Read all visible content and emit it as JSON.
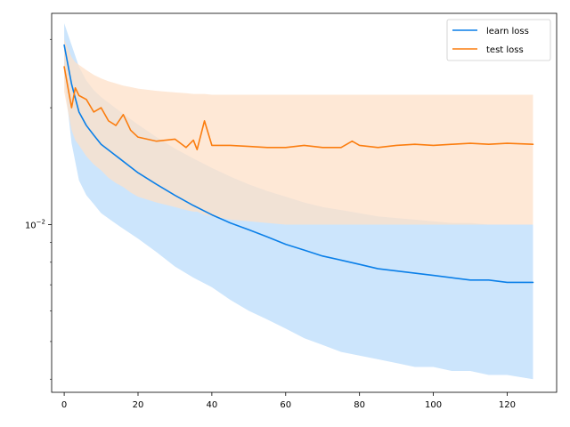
{
  "chart_data": {
    "type": "line",
    "title": "",
    "xlabel": "",
    "ylabel": "",
    "xlim": [
      -3.4,
      133.4
    ],
    "ylim": [
      0.0037,
      0.035
    ],
    "yscale": "log",
    "x_ticks": [
      0,
      20,
      40,
      60,
      80,
      100,
      120
    ],
    "x_tick_labels": [
      "0",
      "20",
      "40",
      "60",
      "80",
      "100",
      "120"
    ],
    "y_major_ticks": [
      0.01
    ],
    "y_major_tick_label_base": "10",
    "y_major_tick_label_exp": "−2",
    "y_minor_ticks": [
      0.004,
      0.005,
      0.006,
      0.007,
      0.008,
      0.009,
      0.02,
      0.03
    ],
    "grid": false,
    "legend_position": "top-right",
    "series": [
      {
        "name": "learn loss",
        "color": "#0a7fe8",
        "band_color": "#cce5fc",
        "x": [
          0,
          2,
          4,
          6,
          8,
          10,
          15,
          20,
          25,
          30,
          35,
          40,
          45,
          50,
          55,
          60,
          65,
          70,
          75,
          80,
          85,
          90,
          95,
          100,
          105,
          110,
          115,
          120,
          127
        ],
        "mean": [
          0.029,
          0.023,
          0.0195,
          0.018,
          0.017,
          0.0161,
          0.0148,
          0.0136,
          0.0127,
          0.0119,
          0.0112,
          0.0106,
          0.0101,
          0.0097,
          0.0093,
          0.0089,
          0.0086,
          0.0083,
          0.0081,
          0.0079,
          0.0077,
          0.0076,
          0.0075,
          0.0074,
          0.0073,
          0.0072,
          0.0072,
          0.0071,
          0.0071
        ],
        "lower": [
          0.024,
          0.0162,
          0.013,
          0.0119,
          0.0113,
          0.0107,
          0.0099,
          0.0092,
          0.0085,
          0.0078,
          0.0073,
          0.0069,
          0.0064,
          0.006,
          0.0057,
          0.0054,
          0.0051,
          0.0049,
          0.0047,
          0.0046,
          0.0045,
          0.0044,
          0.0043,
          0.0043,
          0.0042,
          0.0042,
          0.0041,
          0.0041,
          0.004
        ],
        "upper": [
          0.033,
          0.029,
          0.0255,
          0.0235,
          0.0222,
          0.0213,
          0.0196,
          0.0181,
          0.0168,
          0.0157,
          0.0148,
          0.014,
          0.0133,
          0.0127,
          0.0122,
          0.0118,
          0.0114,
          0.0111,
          0.0109,
          0.0107,
          0.0105,
          0.0104,
          0.0103,
          0.0102,
          0.0101,
          0.0101,
          0.01,
          0.01,
          0.01
        ]
      },
      {
        "name": "test loss",
        "color": "#fb7d0f",
        "band_color": "#fde0c8",
        "x": [
          0,
          2,
          3,
          4,
          6,
          8,
          10,
          12,
          14,
          16,
          18,
          20,
          25,
          30,
          33,
          35,
          36,
          38,
          40,
          45,
          50,
          55,
          60,
          65,
          70,
          75,
          78,
          80,
          85,
          90,
          95,
          100,
          105,
          110,
          115,
          120,
          127
        ],
        "mean": [
          0.0255,
          0.02,
          0.0225,
          0.0215,
          0.021,
          0.0195,
          0.02,
          0.0185,
          0.018,
          0.0192,
          0.0175,
          0.0168,
          0.0164,
          0.0166,
          0.0158,
          0.0165,
          0.0156,
          0.0185,
          0.016,
          0.016,
          0.0159,
          0.0158,
          0.0158,
          0.016,
          0.0158,
          0.0158,
          0.0164,
          0.016,
          0.0158,
          0.016,
          0.0161,
          0.016,
          0.0161,
          0.0162,
          0.0161,
          0.0162,
          0.0161
        ],
        "lower": [
          0.022,
          0.0175,
          0.0165,
          0.016,
          0.015,
          0.0143,
          0.0138,
          0.0132,
          0.0128,
          0.0125,
          0.0121,
          0.0118,
          0.0114,
          0.0111,
          0.0109,
          0.0108,
          0.0108,
          0.0106,
          0.0105,
          0.0103,
          0.0102,
          0.0101,
          0.01,
          0.01,
          0.01,
          0.01,
          0.01,
          0.01,
          0.01,
          0.01,
          0.01,
          0.01,
          0.01,
          0.01,
          0.01,
          0.01,
          0.01
        ],
        "upper": [
          0.03,
          0.027,
          0.0262,
          0.0258,
          0.025,
          0.0243,
          0.0238,
          0.0234,
          0.0231,
          0.0228,
          0.0226,
          0.0224,
          0.0221,
          0.0219,
          0.0218,
          0.0217,
          0.0217,
          0.0217,
          0.0216,
          0.0216,
          0.0216,
          0.0216,
          0.0216,
          0.0216,
          0.0216,
          0.0216,
          0.0216,
          0.0216,
          0.0216,
          0.0216,
          0.0216,
          0.0216,
          0.0216,
          0.0216,
          0.0216,
          0.0216,
          0.0216
        ]
      }
    ]
  }
}
